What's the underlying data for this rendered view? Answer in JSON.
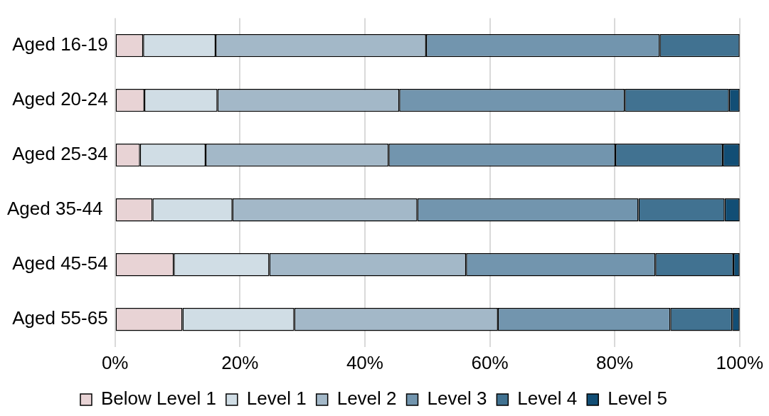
{
  "chart_data": {
    "type": "bar",
    "orientation": "horizontal",
    "stacked": true,
    "categories": [
      "Aged 16-19",
      "Aged 20-24",
      "Aged 25-34",
      "Aged 35-44 ",
      "Aged 45-54",
      "Aged 55-65"
    ],
    "series": [
      {
        "name": "Below Level 1",
        "color": "#e8d3d5",
        "values": [
          4.5,
          4.7,
          4.0,
          6.0,
          9.4,
          10.8
        ]
      },
      {
        "name": "Level 1",
        "color": "#d0dde5",
        "values": [
          11.6,
          11.7,
          10.5,
          12.8,
          15.3,
          17.9
        ]
      },
      {
        "name": "Level 2",
        "color": "#a3b8c8",
        "values": [
          33.7,
          29.1,
          29.3,
          29.6,
          31.5,
          32.6
        ]
      },
      {
        "name": "Level 3",
        "color": "#7295ae",
        "values": [
          37.4,
          36.1,
          36.3,
          35.4,
          30.3,
          27.6
        ]
      },
      {
        "name": "Level 4",
        "color": "#417291",
        "values": [
          12.8,
          16.7,
          17.2,
          13.8,
          12.5,
          9.9
        ]
      },
      {
        "name": "Level 5",
        "color": "#124e75",
        "values": [
          0,
          1.7,
          2.7,
          2.4,
          1.0,
          1.2
        ]
      }
    ],
    "xlim": [
      0,
      100
    ],
    "xticks": [
      {
        "value": 0,
        "label": "0%"
      },
      {
        "value": 20,
        "label": "20%"
      },
      {
        "value": 40,
        "label": "40%"
      },
      {
        "value": 60,
        "label": "60%"
      },
      {
        "value": 80,
        "label": "80%"
      },
      {
        "value": 100,
        "label": "100%"
      }
    ],
    "grid": "x",
    "legend": "bottom"
  }
}
